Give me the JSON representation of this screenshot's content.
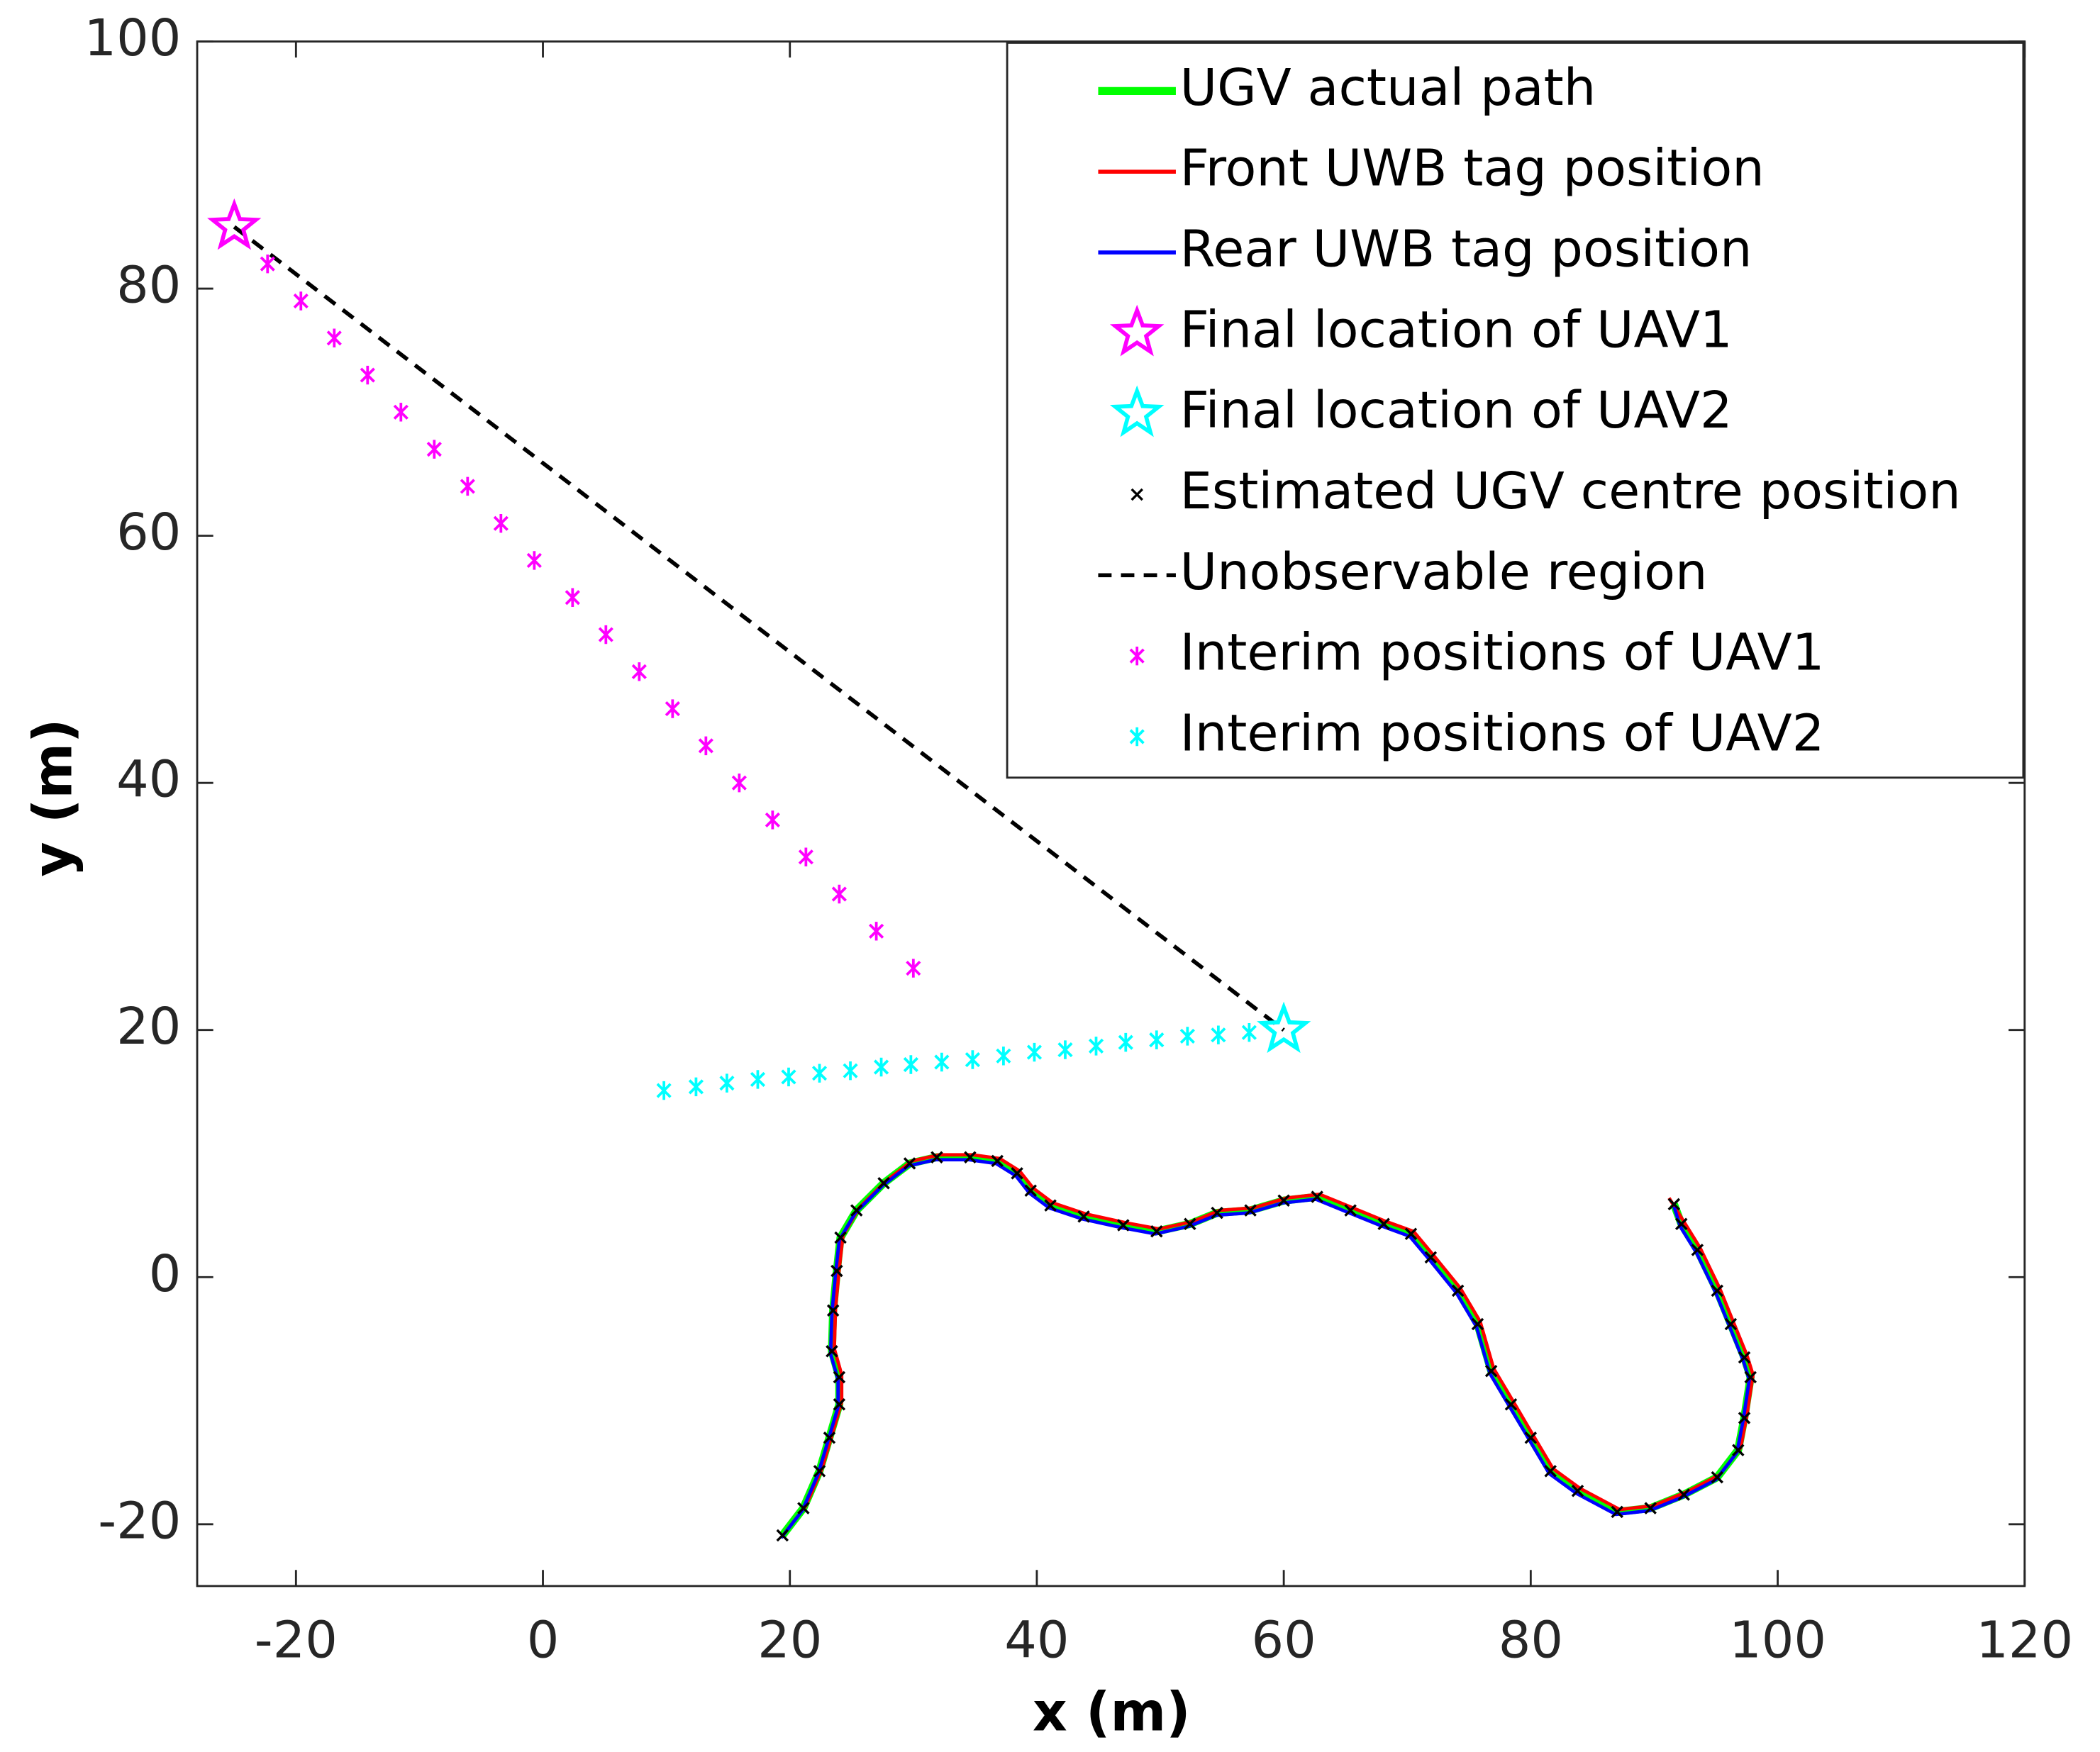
{
  "chart_data": {
    "type": "line",
    "xlabel": "x (m)",
    "ylabel": "y (m)",
    "xlim": [
      -28,
      120
    ],
    "ylim": [
      -25,
      100
    ],
    "xticks": [
      -20,
      0,
      20,
      40,
      60,
      80,
      100,
      120
    ],
    "yticks": [
      -20,
      0,
      20,
      40,
      60,
      80,
      100
    ],
    "legend": "upper right",
    "series": [
      {
        "name": "UGV actual path",
        "color": "#00ff00",
        "line": "solid",
        "marker": "none",
        "x": [
          19.4,
          21.1,
          22.4,
          23.2,
          24.0,
          24.0,
          23.4,
          23.5,
          23.8,
          24.1,
          25.4,
          27.6,
          29.7,
          31.9,
          34.6,
          36.8,
          38.4,
          39.5,
          41.1,
          43.8,
          47.0,
          49.7,
          52.4,
          54.6,
          57.3,
          60.0,
          62.7,
          65.4,
          68.1,
          70.3,
          71.9,
          74.1,
          75.7,
          76.8,
          78.4,
          80.0,
          81.6,
          83.8,
          87.0,
          89.7,
          92.4,
          95.1,
          96.8,
          97.3,
          97.8,
          97.3,
          96.2,
          95.1,
          93.5,
          92.2,
          91.6
        ],
        "values": [
          -20.9,
          -18.7,
          -15.7,
          -13.0,
          -10.3,
          -8.1,
          -6.0,
          -2.7,
          0.5,
          3.2,
          5.4,
          7.6,
          9.2,
          9.7,
          9.7,
          9.4,
          8.4,
          7.0,
          5.8,
          4.9,
          4.2,
          3.7,
          4.3,
          5.2,
          5.4,
          6.2,
          6.5,
          5.4,
          4.3,
          3.5,
          1.6,
          -1.1,
          -3.8,
          -7.6,
          -10.3,
          -13.0,
          -15.7,
          -17.3,
          -19.0,
          -18.7,
          -17.6,
          -16.2,
          -14.0,
          -11.4,
          -8.1,
          -6.5,
          -3.8,
          -1.1,
          2.2,
          4.3,
          5.9
        ]
      },
      {
        "name": "Front UWB tag position",
        "color": "#ff0000",
        "line": "solid",
        "marker": "none",
        "x": [
          19.6,
          21.3,
          22.6,
          23.4,
          24.2,
          24.2,
          23.6,
          23.7,
          24.0,
          24.3,
          25.6,
          27.8,
          29.9,
          32.1,
          34.8,
          37.0,
          38.6,
          39.7,
          41.3,
          44.0,
          47.2,
          49.9,
          52.6,
          54.8,
          57.5,
          60.2,
          62.9,
          65.6,
          68.3,
          70.5,
          72.1,
          74.3,
          75.9,
          77.0,
          78.6,
          80.2,
          81.8,
          84.0,
          87.2,
          89.9,
          92.6,
          95.3,
          97.0,
          97.5,
          98.0,
          97.5,
          96.4,
          95.3,
          93.7,
          92.4,
          91.2
        ],
        "values": [
          -20.7,
          -18.5,
          -15.5,
          -12.8,
          -10.1,
          -7.9,
          -5.8,
          -2.5,
          0.7,
          3.4,
          5.6,
          7.8,
          9.4,
          9.9,
          9.9,
          9.6,
          8.6,
          7.2,
          6.0,
          5.1,
          4.4,
          3.9,
          4.5,
          5.4,
          5.6,
          6.4,
          6.7,
          5.6,
          4.5,
          3.7,
          1.8,
          -0.9,
          -3.6,
          -7.4,
          -10.1,
          -12.8,
          -15.5,
          -17.1,
          -18.8,
          -18.5,
          -17.4,
          -16.0,
          -13.8,
          -11.2,
          -7.9,
          -6.3,
          -3.6,
          -0.9,
          2.4,
          4.5,
          6.4
        ]
      },
      {
        "name": "Rear UWB tag position",
        "color": "#0000ff",
        "line": "solid",
        "marker": "none",
        "x": [
          19.3,
          21.0,
          22.3,
          23.1,
          23.9,
          23.9,
          23.3,
          23.4,
          23.7,
          24.0,
          25.3,
          27.5,
          29.6,
          31.8,
          34.5,
          36.7,
          38.3,
          39.4,
          41.0,
          43.7,
          46.9,
          49.6,
          52.3,
          54.5,
          57.2,
          59.9,
          62.6,
          65.3,
          68.0,
          70.2,
          71.8,
          74.0,
          75.6,
          76.7,
          78.3,
          79.9,
          81.5,
          83.7,
          86.9,
          89.6,
          92.3,
          95.0,
          96.7,
          97.2,
          97.7,
          97.2,
          96.1,
          95.0,
          93.4,
          92.1,
          91.6
        ],
        "values": [
          -21.1,
          -18.9,
          -15.9,
          -13.2,
          -10.5,
          -8.3,
          -6.2,
          -2.9,
          0.3,
          3.0,
          5.2,
          7.4,
          9.0,
          9.5,
          9.5,
          9.2,
          8.2,
          6.8,
          5.6,
          4.7,
          4.0,
          3.5,
          4.1,
          5.0,
          5.2,
          6.0,
          6.3,
          5.2,
          4.1,
          3.3,
          1.4,
          -1.3,
          -4.0,
          -7.8,
          -10.5,
          -13.2,
          -15.9,
          -17.5,
          -19.2,
          -18.9,
          -17.8,
          -16.4,
          -14.2,
          -11.6,
          -8.3,
          -6.7,
          -4.0,
          -1.3,
          2.0,
          4.1,
          5.7
        ]
      },
      {
        "name": "Final location of UAV1",
        "color": "#ff00ff",
        "line": "none",
        "marker": "star",
        "x": [
          -25
        ],
        "values": [
          85
        ]
      },
      {
        "name": "Final location of UAV2",
        "color": "#00ffff",
        "line": "none",
        "marker": "star",
        "x": [
          60
        ],
        "values": [
          20
        ]
      },
      {
        "name": "Estimated UGV centre position",
        "color": "#000000",
        "line": "none",
        "marker": "x",
        "x": [
          19.4,
          21.1,
          22.4,
          23.2,
          24.0,
          24.0,
          23.4,
          23.5,
          23.8,
          24.1,
          25.4,
          27.6,
          29.7,
          31.9,
          34.6,
          36.8,
          38.4,
          39.5,
          41.1,
          43.8,
          47.0,
          49.7,
          52.4,
          54.6,
          57.3,
          60.0,
          62.7,
          65.4,
          68.1,
          70.3,
          71.9,
          74.1,
          75.7,
          76.8,
          78.4,
          80.0,
          81.6,
          83.8,
          87.0,
          89.7,
          92.4,
          95.1,
          96.8,
          97.3,
          97.8,
          97.3,
          96.2,
          95.1,
          93.5,
          92.2,
          91.6
        ],
        "values": [
          -20.9,
          -18.7,
          -15.7,
          -13.0,
          -10.3,
          -8.1,
          -6.0,
          -2.7,
          0.5,
          3.2,
          5.4,
          7.6,
          9.2,
          9.7,
          9.7,
          9.4,
          8.4,
          7.0,
          5.8,
          4.9,
          4.2,
          3.7,
          4.3,
          5.2,
          5.4,
          6.2,
          6.5,
          5.4,
          4.3,
          3.5,
          1.6,
          -1.1,
          -3.8,
          -7.6,
          -10.3,
          -13.0,
          -15.7,
          -17.3,
          -19.0,
          -18.7,
          -17.6,
          -16.2,
          -14.0,
          -11.4,
          -8.1,
          -6.5,
          -3.8,
          -1.1,
          2.2,
          4.3,
          5.9
        ]
      },
      {
        "name": "Unobservable region",
        "color": "#000000",
        "line": "dashed",
        "marker": "none",
        "x": [
          -25,
          60
        ],
        "values": [
          85,
          20
        ]
      },
      {
        "name": "Interim positions of UAV1",
        "color": "#ff00ff",
        "line": "none",
        "marker": "asterisk",
        "x": [
          -22.3,
          -19.6,
          -16.9,
          -14.2,
          -11.5,
          -8.8,
          -6.1,
          -3.4,
          -0.7,
          2.4,
          5.1,
          7.8,
          10.5,
          13.2,
          15.9,
          18.6,
          21.3,
          24.0,
          27.0,
          30.0
        ],
        "values": [
          82,
          79,
          76,
          73,
          70,
          67,
          64,
          61,
          58,
          55,
          52,
          49,
          46,
          43,
          40,
          37,
          34,
          31,
          28,
          25
        ]
      },
      {
        "name": "Interim positions of UAV2",
        "color": "#00ffff",
        "line": "none",
        "marker": "asterisk",
        "x": [
          9.8,
          12.4,
          14.9,
          17.4,
          19.9,
          22.4,
          24.9,
          27.4,
          29.8,
          32.3,
          34.8,
          37.3,
          39.8,
          42.3,
          44.8,
          47.2,
          49.7,
          52.2,
          54.7,
          57.2
        ],
        "values": [
          15.1,
          15.4,
          15.7,
          16.0,
          16.2,
          16.5,
          16.7,
          17.0,
          17.2,
          17.4,
          17.6,
          17.9,
          18.2,
          18.4,
          18.7,
          19.0,
          19.2,
          19.5,
          19.6,
          19.8
        ]
      }
    ]
  }
}
